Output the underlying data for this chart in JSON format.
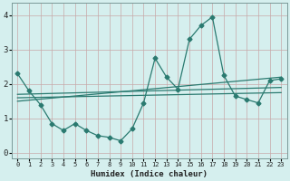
{
  "title": "",
  "xlabel": "Humidex (Indice chaleur)",
  "ylabel": "",
  "bg_color": "#d5efee",
  "line_color": "#2a7a70",
  "grid_color": "#c8dcd8",
  "x_ticks": [
    0,
    1,
    2,
    3,
    4,
    5,
    6,
    7,
    8,
    9,
    10,
    11,
    12,
    13,
    14,
    15,
    16,
    17,
    18,
    19,
    20,
    21,
    22,
    23
  ],
  "y_ticks": [
    0,
    1,
    2,
    3,
    4
  ],
  "ylim": [
    -0.15,
    4.35
  ],
  "xlim": [
    -0.5,
    23.5
  ],
  "main_series": {
    "x": [
      0,
      1,
      2,
      3,
      4,
      5,
      6,
      7,
      8,
      9,
      10,
      11,
      12,
      13,
      14,
      15,
      16,
      17,
      18,
      19,
      20,
      21,
      22,
      23
    ],
    "y": [
      2.3,
      1.8,
      1.4,
      0.85,
      0.65,
      0.85,
      0.65,
      0.5,
      0.45,
      0.35,
      0.7,
      1.45,
      2.75,
      2.2,
      1.85,
      3.3,
      3.7,
      3.95,
      2.25,
      1.65,
      1.55,
      1.45,
      2.1,
      2.15
    ]
  },
  "trend_lines": [
    {
      "x0": 0,
      "y0": 1.5,
      "x1": 23,
      "y1": 2.2
    },
    {
      "x0": 0,
      "y0": 1.6,
      "x1": 23,
      "y1": 1.75
    },
    {
      "x0": 0,
      "y0": 1.7,
      "x1": 23,
      "y1": 1.9
    }
  ]
}
